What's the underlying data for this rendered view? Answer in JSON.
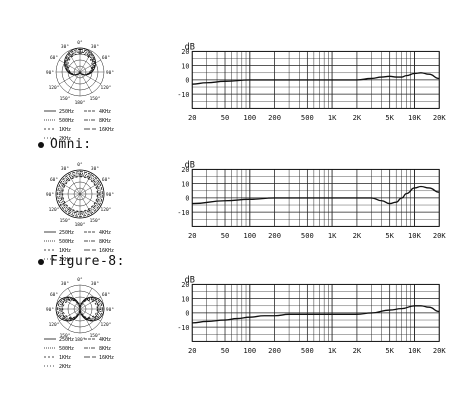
{
  "patterns": [
    {
      "label": "",
      "polar_angles": [
        "0°",
        "30°",
        "30°",
        "60°",
        "60°",
        "90°",
        "90°",
        "120°",
        "120°",
        "150°",
        "150°",
        "180°"
      ],
      "legend": [
        [
          "250Hz",
          "4KHz"
        ],
        [
          "500Hz",
          "8KHz"
        ],
        [
          "1KHz",
          "16KHz"
        ],
        [
          "2KHz",
          ""
        ]
      ]
    },
    {
      "label": "Omni:",
      "polar_angles": [
        "0°",
        "30°",
        "30°",
        "60°",
        "60°",
        "90°",
        "90°",
        "120°",
        "120°",
        "150°",
        "150°",
        "180°"
      ],
      "legend": [
        [
          "250Hz",
          "4KHz"
        ],
        [
          "500Hz",
          "8KHz"
        ],
        [
          "1KHz",
          "16KHz"
        ],
        [
          "2KHz",
          ""
        ]
      ]
    },
    {
      "label": "Figure-8:",
      "polar_angles": [
        "0°",
        "30°",
        "30°",
        "60°",
        "60°",
        "90°",
        "90°",
        "120°",
        "120°",
        "150°",
        "150°",
        "180°"
      ],
      "legend": [
        [
          "250Hz",
          "4KHz"
        ],
        [
          "500Hz",
          "8KHz"
        ],
        [
          "1KHz",
          "16KHz"
        ],
        [
          "2KHz",
          ""
        ]
      ]
    }
  ],
  "chart_data": [
    {
      "type": "line",
      "ylabel": "dB",
      "y_ticks": [
        "20",
        "10",
        "0",
        "-10"
      ],
      "ylim": [
        -20,
        20
      ],
      "x_scale": "log",
      "xlim": [
        20,
        20000
      ],
      "x_tick_labels": [
        "20",
        "50",
        "100",
        "200",
        "500",
        "1K",
        "2K",
        "5K",
        "10K",
        "20K"
      ],
      "x_tick_values": [
        20,
        50,
        100,
        200,
        500,
        1000,
        2000,
        5000,
        10000,
        20000
      ],
      "grid": true,
      "series": [
        {
          "x": [
            20,
            30,
            50,
            100,
            200,
            500,
            1000,
            2000,
            3000,
            4000,
            5000,
            6000,
            7000,
            8000,
            10000,
            12000,
            15000,
            20000
          ],
          "values": [
            -3,
            -2,
            -1,
            0,
            0,
            0,
            0,
            0,
            1,
            2,
            2.5,
            2,
            2,
            3,
            4.5,
            5,
            4,
            1
          ]
        }
      ]
    },
    {
      "type": "line",
      "ylabel": "dB",
      "y_ticks": [
        "20",
        "10",
        "0",
        "-10"
      ],
      "ylim": [
        -20,
        20
      ],
      "x_scale": "log",
      "xlim": [
        20,
        20000
      ],
      "x_tick_labels": [
        "20",
        "50",
        "100",
        "200",
        "500",
        "1K",
        "2K",
        "5K",
        "10K",
        "20K"
      ],
      "x_tick_values": [
        20,
        50,
        100,
        200,
        500,
        1000,
        2000,
        5000,
        10000,
        20000
      ],
      "grid": true,
      "series": [
        {
          "x": [
            20,
            50,
            100,
            200,
            500,
            1000,
            2000,
            3000,
            4000,
            5000,
            6000,
            7000,
            8000,
            10000,
            12000,
            15000,
            20000
          ],
          "values": [
            -4,
            -2,
            -1,
            0,
            0,
            0,
            0,
            0,
            -2,
            -4,
            -3,
            0,
            3,
            7,
            8,
            7,
            4
          ]
        }
      ]
    },
    {
      "type": "line",
      "ylabel": "dB",
      "y_ticks": [
        "20",
        "10",
        "0",
        "-10"
      ],
      "ylim": [
        -20,
        20
      ],
      "x_scale": "log",
      "xlim": [
        20,
        20000
      ],
      "x_tick_labels": [
        "20",
        "50",
        "100",
        "200",
        "500",
        "1K",
        "2K",
        "5K",
        "10K",
        "20K"
      ],
      "x_tick_values": [
        20,
        50,
        100,
        200,
        500,
        1000,
        2000,
        5000,
        10000,
        20000
      ],
      "grid": true,
      "series": [
        {
          "x": [
            20,
            30,
            50,
            70,
            100,
            150,
            200,
            300,
            500,
            1000,
            2000,
            3000,
            5000,
            7000,
            10000,
            12000,
            15000,
            20000
          ],
          "values": [
            -7,
            -6,
            -5,
            -4,
            -3,
            -2,
            -2,
            -1,
            -1,
            -1,
            -1,
            0,
            2,
            3,
            5,
            5,
            4,
            1
          ]
        }
      ]
    }
  ]
}
